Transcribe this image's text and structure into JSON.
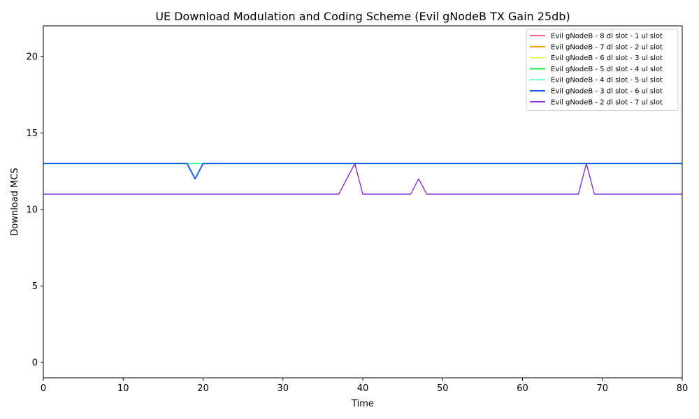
{
  "chart_data": {
    "type": "line",
    "title": "UE Download Modulation and Coding Scheme (Evil gNodeB TX Gain 25db)",
    "xlabel": "Time",
    "ylabel": "Download MCS",
    "xlim": [
      0,
      80
    ],
    "ylim": [
      -1,
      22
    ],
    "xticks": [
      0,
      10,
      20,
      30,
      40,
      50,
      60,
      70,
      80
    ],
    "yticks": [
      0,
      5,
      10,
      15,
      20
    ],
    "grid": false,
    "legend_position": "top-right",
    "series": [
      {
        "name": "Evil gNodeB - 8 dl slot - 1 ul slot",
        "color": "#ff3355",
        "width": 1.2,
        "points": [
          [
            0,
            13
          ],
          [
            80,
            13
          ]
        ]
      },
      {
        "name": "Evil gNodeB - 7 dl slot - 2 ul slot",
        "color": "#ff9900",
        "width": 1.5,
        "points": [
          [
            0,
            13
          ],
          [
            80,
            13
          ]
        ]
      },
      {
        "name": "Evil gNodeB - 6 dl slot - 3 ul slot",
        "color": "#ccff33",
        "width": 1.2,
        "points": [
          [
            0,
            13
          ],
          [
            80,
            13
          ]
        ]
      },
      {
        "name": "Evil gNodeB - 5 dl slot - 4 ul slot",
        "color": "#22ee44",
        "width": 1.8,
        "points": [
          [
            0,
            13
          ],
          [
            80,
            13
          ]
        ]
      },
      {
        "name": "Evil gNodeB - 4 dl slot - 5 ul slot",
        "color": "#33ffcc",
        "width": 1.2,
        "points": [
          [
            0,
            13
          ],
          [
            80,
            13
          ]
        ]
      },
      {
        "name": "Evil gNodeB - 3 dl slot - 6 ul slot",
        "color": "#0d55ee",
        "width": 1.8,
        "points": [
          [
            0,
            13
          ],
          [
            18,
            13
          ],
          [
            19,
            12
          ],
          [
            20,
            13
          ],
          [
            80,
            13
          ]
        ]
      },
      {
        "name": "Evil gNodeB - 2 dl slot - 7 ul slot",
        "color": "#7711dd",
        "width": 1.2,
        "points": [
          [
            0,
            11
          ],
          [
            37,
            11
          ],
          [
            39,
            13
          ],
          [
            40,
            11
          ],
          [
            46,
            11
          ],
          [
            47,
            12
          ],
          [
            48,
            11
          ],
          [
            67,
            11
          ],
          [
            68,
            13
          ],
          [
            69,
            11
          ],
          [
            80,
            11
          ]
        ]
      }
    ]
  }
}
